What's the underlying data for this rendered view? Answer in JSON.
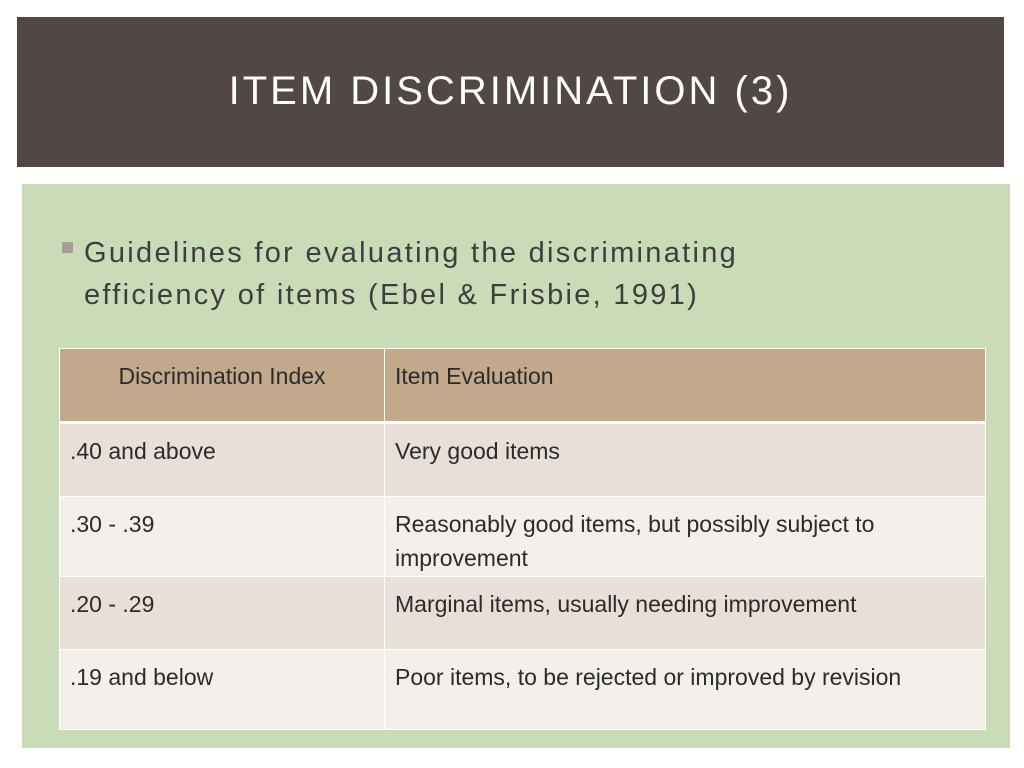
{
  "slide": {
    "title": "Item Discrimination (3)",
    "bullet": {
      "icon": "square-bullet-icon",
      "text": "Guidelines for evaluating the discriminating\nefficiency of items (Ebel & Frisbie, 1991)"
    },
    "table": {
      "headers": [
        "Discrimination Index",
        "Item Evaluation"
      ],
      "rows": [
        [
          ".40 and above",
          "Very good items"
        ],
        [
          ".30 - .39",
          "Reasonably good items, but possibly subject to improvement"
        ],
        [
          ".20 - .29",
          "Marginal items, usually needing improvement"
        ],
        [
          ".19 and below",
          "Poor items, to be rejected or improved by revision"
        ]
      ]
    },
    "colors": {
      "title_bar": "#514744",
      "content_panel": "#cadbb8",
      "header_row": "#c2a98b",
      "row_dark": "#e7dfd8",
      "row_light": "#f3efeb"
    }
  }
}
